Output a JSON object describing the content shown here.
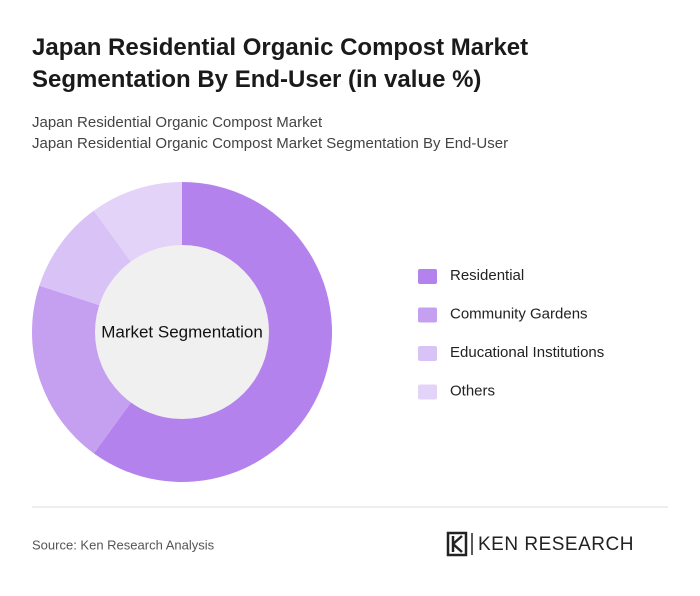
{
  "chart_data": {
    "type": "donut",
    "title": "Japan Residential Organic Compost Market Segmentation By End-User (in value %)",
    "subtitles": [
      "Japan Residential Organic Compost Market",
      "Japan Residential Organic Compost Market Segmentation By End-User"
    ],
    "center_label": "Market Segmentation",
    "categories": [
      "Residential",
      "Community Gardens",
      "Educational Institutions",
      "Others"
    ],
    "values": [
      60,
      20,
      10,
      10
    ],
    "colors": [
      "#b482ec",
      "#c5a0f1",
      "#d9c2f6",
      "#e4d3f8"
    ]
  },
  "footer": {
    "source": "Source: Ken Research Analysis",
    "brand": "KEN RESEARCH"
  }
}
